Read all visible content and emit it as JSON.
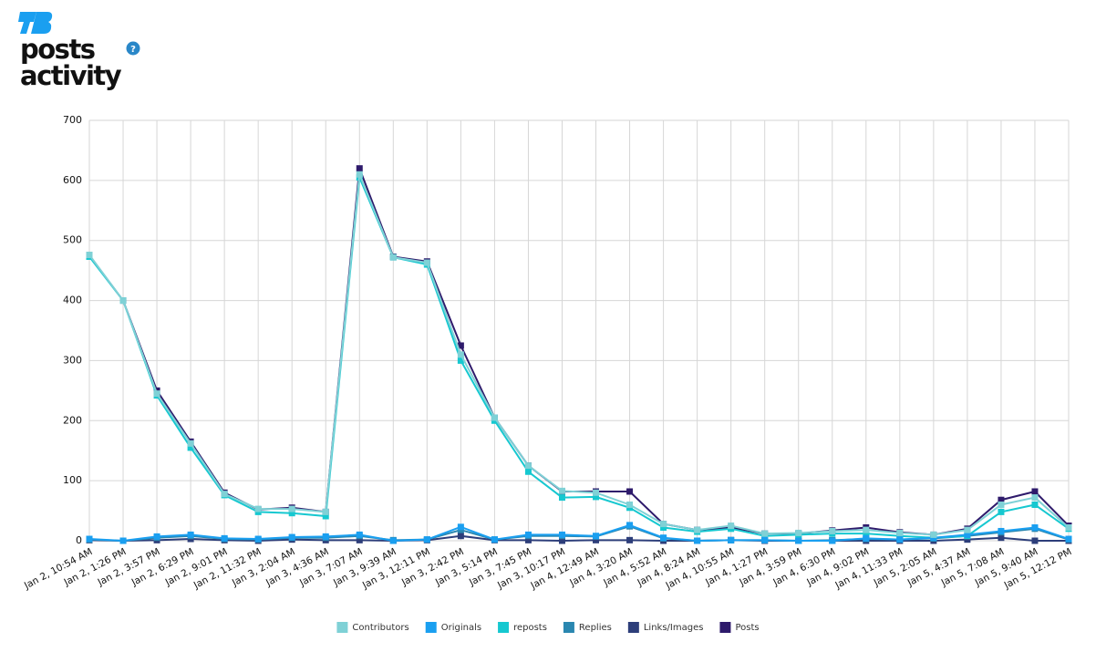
{
  "header": {
    "title": "posts activity",
    "help": "?"
  },
  "chart_data": {
    "type": "line",
    "categories": [
      "Jan 2, 10:54 AM",
      "Jan 2, 1:26 PM",
      "Jan 2, 3:57 PM",
      "Jan 2, 6:29 PM",
      "Jan 2, 9:01 PM",
      "Jan 2, 11:32 PM",
      "Jan 3, 2:04 AM",
      "Jan 3, 4:36 AM",
      "Jan 3, 7:07 AM",
      "Jan 3, 9:39 AM",
      "Jan 3, 12:11 PM",
      "Jan 3, 2:42 PM",
      "Jan 3, 5:14 PM",
      "Jan 3, 7:45 PM",
      "Jan 3, 10:17 PM",
      "Jan 4, 12:49 AM",
      "Jan 4, 3:20 AM",
      "Jan 4, 5:52 AM",
      "Jan 4, 8:24 AM",
      "Jan 4, 10:55 AM",
      "Jan 4, 1:27 PM",
      "Jan 4, 3:59 PM",
      "Jan 4, 6:30 PM",
      "Jan 4, 9:02 PM",
      "Jan 4, 11:33 PM",
      "Jan 5, 2:05 AM",
      "Jan 5, 4:37 AM",
      "Jan 5, 7:08 AM",
      "Jan 5, 9:40 AM",
      "Jan 5, 12:12 PM"
    ],
    "series": [
      {
        "name": "Contributors",
        "color": "#7fd1d6",
        "values": [
          476,
          400,
          245,
          162,
          78,
          53,
          53,
          48,
          610,
          472,
          463,
          310,
          205,
          125,
          83,
          80,
          60,
          28,
          18,
          25,
          12,
          13,
          16,
          18,
          13,
          10,
          18,
          60,
          72,
          22
        ]
      },
      {
        "name": "Originals",
        "color": "#1a9ff0",
        "values": [
          3,
          0,
          7,
          10,
          4,
          3,
          6,
          7,
          10,
          0,
          2,
          23,
          2,
          10,
          10,
          8,
          26,
          5,
          0,
          1,
          1,
          0,
          0,
          4,
          2,
          5,
          10,
          16,
          22,
          3
        ]
      },
      {
        "name": "reposts",
        "color": "#16c8d0",
        "values": [
          473,
          400,
          242,
          155,
          76,
          48,
          46,
          41,
          605,
          472,
          460,
          300,
          200,
          115,
          72,
          73,
          55,
          22,
          15,
          20,
          8,
          10,
          12,
          12,
          8,
          5,
          8,
          48,
          60,
          20
        ]
      },
      {
        "name": "Replies",
        "color": "#2a87b0",
        "values": [
          2,
          0,
          5,
          8,
          3,
          2,
          5,
          5,
          8,
          1,
          2,
          18,
          2,
          8,
          8,
          7,
          24,
          4,
          0,
          1,
          1,
          0,
          1,
          3,
          2,
          4,
          8,
          14,
          20,
          2
        ]
      },
      {
        "name": "Links/Images",
        "color": "#2d3e7a",
        "values": [
          1,
          0,
          1,
          3,
          1,
          0,
          2,
          1,
          1,
          0,
          1,
          8,
          1,
          1,
          0,
          1,
          1,
          0,
          0,
          1,
          0,
          0,
          0,
          0,
          0,
          0,
          2,
          5,
          0,
          0
        ]
      },
      {
        "name": "Posts",
        "color": "#2e1a6b",
        "values": [
          475,
          400,
          250,
          165,
          80,
          52,
          55,
          48,
          620,
          473,
          465,
          325,
          205,
          125,
          82,
          82,
          82,
          28,
          18,
          22,
          12,
          12,
          17,
          22,
          14,
          10,
          20,
          68,
          82,
          25
        ]
      }
    ],
    "ylim": [
      0,
      700
    ],
    "yticks": [
      0,
      100,
      200,
      300,
      400,
      500,
      600,
      700
    ],
    "grid": true,
    "legend": "bottom"
  }
}
